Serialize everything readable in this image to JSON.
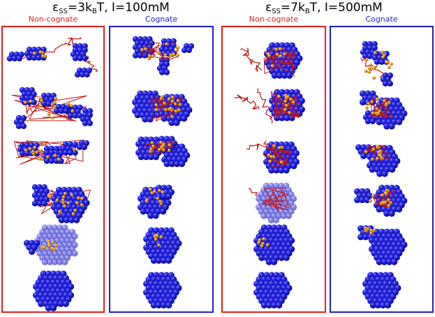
{
  "titles": [
    {
      "epsilon": "ε",
      "eps_sub": "SS",
      "eq1": "=3k",
      "kb_sub": "B",
      "rest": "T, I=100mM"
    },
    {
      "epsilon": "ε",
      "eps_sub": "SS",
      "eq1": "=7k",
      "kb_sub": "B",
      "rest": "T, I=500mM"
    }
  ],
  "panels": [
    {
      "label": "Non-cognate",
      "color": "#dd1f1f"
    },
    {
      "label": "Cognate",
      "color": "#1f1fc8"
    },
    {
      "label": "Non-cognate",
      "color": "#dd1f1f"
    },
    {
      "label": "Cognate",
      "color": "#1f1fc8"
    }
  ],
  "colors": {
    "protein_bead": "#1f1fd6",
    "rna_bead": "#f0a020",
    "rna_chain": "#c01818"
  }
}
